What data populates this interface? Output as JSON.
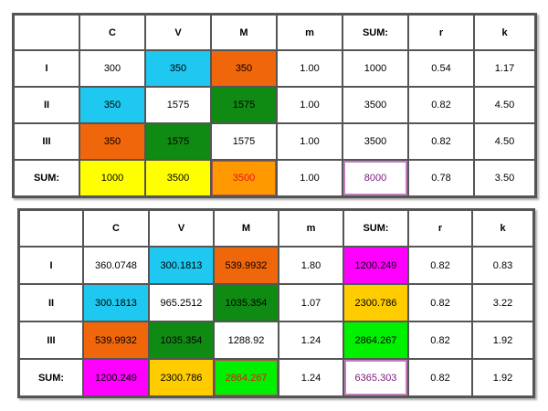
{
  "table1": {
    "headers": [
      "",
      "C",
      "V",
      "M",
      "m",
      "SUM:",
      "r",
      "k"
    ],
    "rows": [
      [
        "I",
        "300",
        "350",
        "350",
        "1.00",
        "1000",
        "0.54",
        "1.17"
      ],
      [
        "II",
        "350",
        "1575",
        "1575",
        "1.00",
        "3500",
        "0.82",
        "4.50"
      ],
      [
        "III",
        "350",
        "1575",
        "1575",
        "1.00",
        "3500",
        "0.82",
        "4.50"
      ],
      [
        "SUM:",
        "1000",
        "3500",
        "3500",
        "1.00",
        "8000",
        "0.78",
        "3.50"
      ]
    ]
  },
  "table2": {
    "headers": [
      "",
      "C",
      "V",
      "M",
      "m",
      "SUM:",
      "r",
      "k"
    ],
    "rows": [
      [
        "I",
        "360.0748",
        "300.1813",
        "539.9932",
        "1.80",
        "1200.249",
        "0.82",
        "0.83"
      ],
      [
        "II",
        "300.1813",
        "965.2512",
        "1035.354",
        "1.07",
        "2300.786",
        "0.82",
        "3.22"
      ],
      [
        "III",
        "539.9932",
        "1035.354",
        "1288.92",
        "1.24",
        "2864.267",
        "0.82",
        "1.92"
      ],
      [
        "SUM:",
        "1200.249",
        "2300.786",
        "2864.267",
        "1.24",
        "6365.303",
        "0.82",
        "1.92"
      ]
    ]
  },
  "colors": {
    "cyan": "#1ec8f0",
    "orange": "#f0660a",
    "green": "#0f8a12",
    "yellow": "#ffff00",
    "gold": "#ffcc00",
    "amber": "#ff9900",
    "magenta": "#ff00ff",
    "lime": "#00f000",
    "red_text": "#e8101e",
    "purple_text": "#7a1a7a"
  }
}
